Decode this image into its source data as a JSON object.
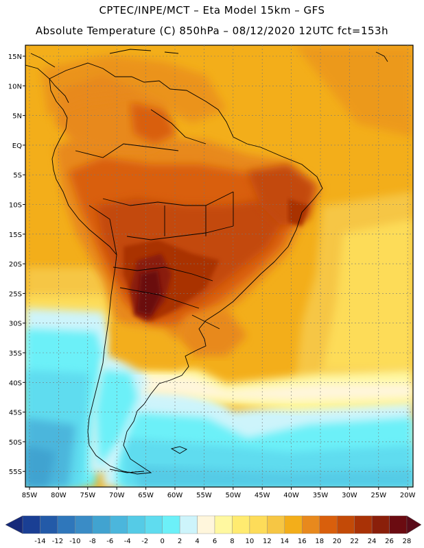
{
  "header": {
    "line1": "CPTEC/INPE/MCT –  Eta Model 15km – GFS",
    "line2": "Absolute Temperature (C) 850hPa – 08/12/2020 12UTC fct=153h"
  },
  "axes": {
    "lat_labels": [
      "15N",
      "10N",
      "5N",
      "EQ",
      "5S",
      "10S",
      "15S",
      "20S",
      "25S",
      "30S",
      "35S",
      "40S",
      "45S",
      "50S",
      "55S"
    ],
    "lon_labels": [
      "85W",
      "80W",
      "75W",
      "70W",
      "65W",
      "60W",
      "55W",
      "50W",
      "45W",
      "40W",
      "35W",
      "30W",
      "25W",
      "20W"
    ]
  },
  "colorbar": {
    "labels": [
      "-14",
      "-12",
      "-10",
      "-8",
      "-6",
      "-4",
      "-2",
      "0",
      "2",
      "4",
      "6",
      "8",
      "10",
      "12",
      "14",
      "16",
      "18",
      "20",
      "22",
      "24",
      "26",
      "28"
    ],
    "colors": [
      "#1a3f94",
      "#235aa8",
      "#2f77bb",
      "#3a8cc6",
      "#41a3d0",
      "#4bb6dc",
      "#55cbe6",
      "#5fdcef",
      "#6cf0f8",
      "#cdf4fb",
      "#fff6dc",
      "#fff8a0",
      "#ffeb70",
      "#fddc59",
      "#f6c644",
      "#f3ae1a",
      "#e8891d",
      "#d95f0c",
      "#c34a07",
      "#a93206",
      "#8a1f0a",
      "#6b0b11"
    ],
    "low_arrow_color": "#15297a",
    "high_arrow_color": "#5a0b19"
  },
  "legend_colors": {
    "ocean_warm": "#f3ae1a",
    "land_hot": "#c34a07"
  }
}
